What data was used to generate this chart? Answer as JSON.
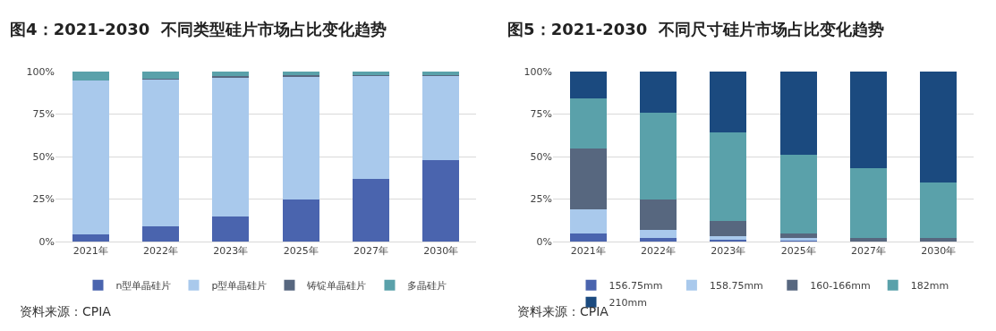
{
  "chart_data": [
    {
      "type": "bar",
      "stacked": true,
      "title": "图4：2021-2030  不同类型硅片市场占比变化趋势",
      "categories": [
        "2021年",
        "2022年",
        "2023年",
        "2025年",
        "2027年",
        "2030年"
      ],
      "series": [
        {
          "name": "n型单晶硅片",
          "color": "#4a64ae",
          "values": [
            4,
            9,
            15,
            25,
            37,
            48
          ]
        },
        {
          "name": "p型单晶硅片",
          "color": "#a9c9ec",
          "values": [
            90.5,
            86.5,
            81.5,
            72,
            60.5,
            49.5
          ]
        },
        {
          "name": "铸锭单晶硅片",
          "color": "#57677f",
          "values": [
            0,
            0.5,
            1,
            1,
            0.5,
            0.5
          ]
        },
        {
          "name": "多晶硅片",
          "color": "#5aa1aa",
          "values": [
            5.5,
            4,
            2.5,
            2,
            2,
            2
          ]
        }
      ],
      "ylim": [
        0,
        100
      ],
      "yticks": [
        {
          "value": 0,
          "label": "0%"
        },
        {
          "value": 25,
          "label": "25%"
        },
        {
          "value": 50,
          "label": "50%"
        },
        {
          "value": 75,
          "label": "75%"
        },
        {
          "value": 100,
          "label": "100%"
        }
      ],
      "grid": "y",
      "legend": "bottom",
      "annotations": [
        "资料来源：CPIA"
      ]
    },
    {
      "type": "bar",
      "stacked": true,
      "title": "图5：2021-2030  不同尺寸硅片市场占比变化趋势",
      "categories": [
        "2021年",
        "2022年",
        "2023年",
        "2025年",
        "2027年",
        "2030年"
      ],
      "series": [
        {
          "name": "156.75mm",
          "color": "#4a64ae",
          "values": [
            5,
            2,
            1,
            1,
            0,
            0
          ]
        },
        {
          "name": "158.75mm",
          "color": "#a9c9ec",
          "values": [
            14,
            5,
            2,
            1,
            null,
            0
          ]
        },
        {
          "name": "160-166mm",
          "color": "#57677f",
          "values": [
            36,
            18,
            9,
            3,
            2,
            2
          ]
        },
        {
          "name": "182mm",
          "color": "#5aa1aa",
          "values": [
            29,
            51,
            52,
            46,
            41,
            33
          ]
        },
        {
          "name": "210mm",
          "color": "#1b4a7f",
          "values": [
            16,
            24,
            36,
            49,
            57,
            65
          ]
        }
      ],
      "ylim": [
        0,
        100
      ],
      "yticks": [
        {
          "value": 0,
          "label": "0%"
        },
        {
          "value": 25,
          "label": "25%"
        },
        {
          "value": 50,
          "label": "50%"
        },
        {
          "value": 75,
          "label": "75%"
        },
        {
          "value": 100,
          "label": "100%"
        }
      ],
      "grid": "y",
      "legend": "bottom",
      "annotations": [
        "资料来源：CPIA"
      ]
    }
  ]
}
